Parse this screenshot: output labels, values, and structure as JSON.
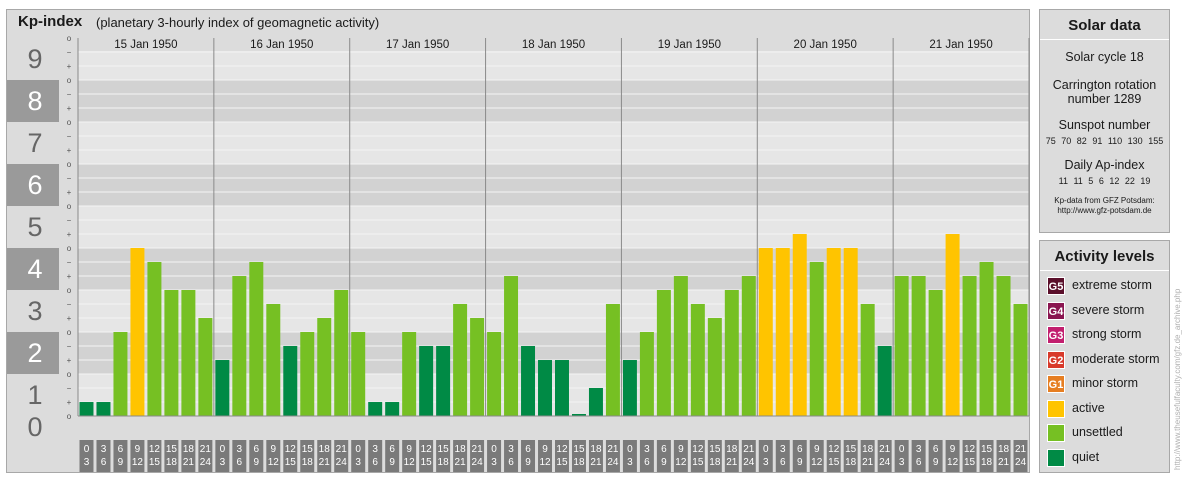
{
  "header": {
    "title": "Kp-index",
    "subtitle": "(planetary 3-hourly index of geomagnetic activity)"
  },
  "solar": {
    "title": "Solar data",
    "cycle": "Solar cycle 18",
    "carrington_line1": "Carrington rotation",
    "carrington_line2": "number 1289",
    "sunspot_title": "Sunspot number",
    "sunspot_values": "75  70  82  91  110  130  155",
    "ap_title": "Daily Ap-index",
    "ap_values": "11  11  5  6  12  22  19",
    "source_line1": "Kp-data from GFZ Potsdam:",
    "source_line2": "http://www.gfz-potsdam.de"
  },
  "activity": {
    "title": "Activity levels",
    "levels": [
      {
        "badge": "G5",
        "label": "extreme storm",
        "color": "#5a0f2a"
      },
      {
        "badge": "G4",
        "label": "severe storm",
        "color": "#8a1550"
      },
      {
        "badge": "G3",
        "label": "strong storm",
        "color": "#c21e6e"
      },
      {
        "badge": "G2",
        "label": "moderate storm",
        "color": "#d8392a"
      },
      {
        "badge": "G1",
        "label": "minor storm",
        "color": "#e67e22"
      },
      {
        "badge": "",
        "label": "active",
        "color": "#ffc400"
      },
      {
        "badge": "",
        "label": "unsettled",
        "color": "#76c023"
      },
      {
        "badge": "",
        "label": "quiet",
        "color": "#008a45"
      }
    ]
  },
  "copyright": "http://www.theusefulfaculty.com/gfz.de_archive.php",
  "chart_data": {
    "type": "bar",
    "ylim": [
      0,
      9
    ],
    "y_ticks": [
      "0",
      "1",
      "2",
      "3",
      "4",
      "5",
      "6",
      "7",
      "8",
      "9"
    ],
    "sub_ticks": [
      "+",
      "o",
      "−"
    ],
    "days": [
      "15 Jan 1950",
      "16 Jan 1950",
      "17 Jan 1950",
      "18 Jan 1950",
      "19 Jan 1950",
      "20 Jan 1950",
      "21 Jan 1950"
    ],
    "interval_start": [
      "0",
      "3",
      "6",
      "9",
      "12",
      "15",
      "18",
      "21"
    ],
    "interval_end": [
      "3",
      "6",
      "9",
      "12",
      "15",
      "18",
      "21",
      "24"
    ],
    "values": [
      [
        0.333,
        0.333,
        2.0,
        4.0,
        3.667,
        3.0,
        3.0,
        2.333
      ],
      [
        1.333,
        3.333,
        3.667,
        2.667,
        1.667,
        2.0,
        2.333,
        3.0
      ],
      [
        2.0,
        0.333,
        0.333,
        2.0,
        1.667,
        1.667,
        2.667,
        2.333
      ],
      [
        2.0,
        3.333,
        1.667,
        1.333,
        1.333,
        0.0,
        0.667,
        2.667
      ],
      [
        1.333,
        2.0,
        3.0,
        3.333,
        2.667,
        2.333,
        3.0,
        3.333
      ],
      [
        4.0,
        4.0,
        4.333,
        3.667,
        4.0,
        4.0,
        2.667,
        1.667
      ],
      [
        3.333,
        3.333,
        3.0,
        4.333,
        3.333,
        3.667,
        3.333,
        2.667
      ]
    ],
    "colors": {
      "quiet": "#008a45",
      "unsettled": "#76c023",
      "active": "#ffc400"
    }
  }
}
